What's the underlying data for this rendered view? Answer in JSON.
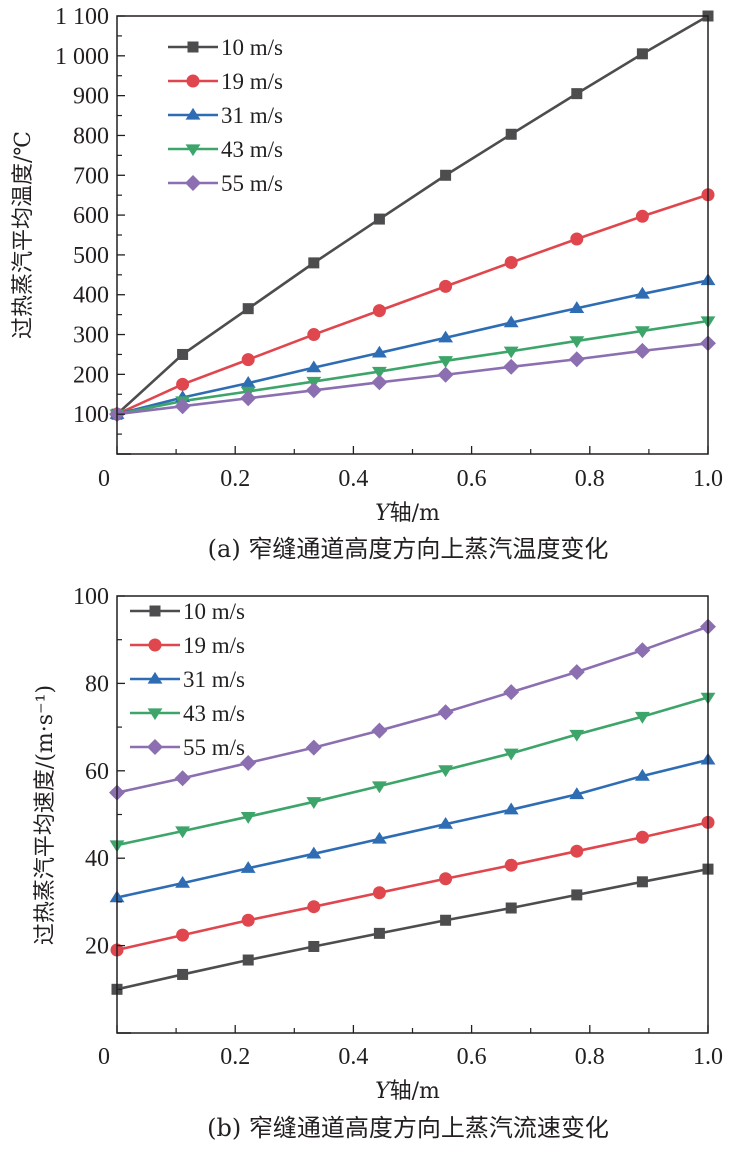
{
  "chart_data": [
    {
      "type": "line",
      "caption": "(a) 窄缝通道高度方向上蒸汽温度变化",
      "xlabel_italic": "Y",
      "xlabel_rest": "轴/m",
      "ylabel": "过热蒸汽平均温度/℃",
      "xlim": [
        0,
        1.0
      ],
      "ylim": [
        0,
        1100
      ],
      "xticks": [
        0,
        0.2,
        0.4,
        0.6,
        0.8,
        1.0
      ],
      "xtick_labels": [
        "0",
        "0.2",
        "0.4",
        "0.6",
        "0.8",
        "1.0"
      ],
      "yticks": [
        100,
        200,
        300,
        400,
        500,
        600,
        700,
        800,
        900,
        1000,
        1100
      ],
      "ytick_labels": [
        "100",
        "200",
        "300",
        "400",
        "500",
        "600",
        "700",
        "800",
        "900",
        "1 000",
        "1 100"
      ],
      "grid": false,
      "legend_position": "top-left",
      "x": [
        0,
        0.111,
        0.222,
        0.333,
        0.444,
        0.556,
        0.667,
        0.778,
        0.889,
        1.0
      ],
      "series": [
        {
          "name": "10 m/s",
          "marker": "square",
          "color": "#4d4d4f",
          "values": [
            100,
            250,
            365,
            480,
            590,
            700,
            803,
            905,
            1005,
            1100
          ]
        },
        {
          "name": "19 m/s",
          "marker": "circle",
          "color": "#e0464d",
          "values": [
            100,
            175,
            237,
            300,
            360,
            421,
            481,
            540,
            597,
            651
          ]
        },
        {
          "name": "31 m/s",
          "marker": "triangle-up",
          "color": "#2e6db4",
          "values": [
            100,
            142,
            178,
            217,
            254,
            292,
            330,
            366,
            402,
            436
          ]
        },
        {
          "name": "43 m/s",
          "marker": "triangle-down",
          "color": "#3da56a",
          "values": [
            100,
            133,
            157,
            182,
            207,
            234,
            258,
            284,
            309,
            334
          ]
        },
        {
          "name": "55 m/s",
          "marker": "diamond",
          "color": "#8b6fb0",
          "values": [
            100,
            120,
            140,
            160,
            180,
            199,
            219,
            238,
            259,
            278
          ]
        }
      ]
    },
    {
      "type": "line",
      "caption": "(b) 窄缝通道高度方向上蒸汽流速变化",
      "xlabel_italic": "Y",
      "xlabel_rest": "轴/m",
      "ylabel": "过热蒸汽平均速度/(m·s⁻¹)",
      "xlim": [
        0,
        1.0
      ],
      "ylim": [
        0,
        100
      ],
      "xticks": [
        0,
        0.2,
        0.4,
        0.6,
        0.8,
        1.0
      ],
      "xtick_labels": [
        "0",
        "0.2",
        "0.4",
        "0.6",
        "0.8",
        "1.0"
      ],
      "yticks": [
        20,
        40,
        60,
        80,
        100
      ],
      "ytick_labels": [
        "20",
        "40",
        "60",
        "80",
        "100"
      ],
      "grid": false,
      "legend_position": "top-left",
      "x": [
        0,
        0.111,
        0.222,
        0.333,
        0.444,
        0.556,
        0.667,
        0.778,
        0.889,
        1.0
      ],
      "series": [
        {
          "name": "10 m/s",
          "marker": "square",
          "color": "#4d4d4f",
          "values": [
            10,
            13.4,
            16.7,
            19.8,
            22.8,
            25.8,
            28.6,
            31.6,
            34.6,
            37.5
          ]
        },
        {
          "name": "19 m/s",
          "marker": "circle",
          "color": "#e0464d",
          "values": [
            19,
            22.4,
            25.8,
            28.9,
            32.1,
            35.3,
            38.4,
            41.6,
            44.8,
            48.2
          ]
        },
        {
          "name": "31 m/s",
          "marker": "triangle-up",
          "color": "#2e6db4",
          "values": [
            31,
            34.3,
            37.7,
            41,
            44.4,
            47.8,
            51.1,
            54.6,
            58.8,
            62.5
          ]
        },
        {
          "name": "43 m/s",
          "marker": "triangle-down",
          "color": "#3da56a",
          "values": [
            43,
            46.2,
            49.5,
            52.9,
            56.5,
            60.2,
            64,
            68.3,
            72.4,
            76.8
          ]
        },
        {
          "name": "55 m/s",
          "marker": "diamond",
          "color": "#8b6fb0",
          "values": [
            55,
            58.3,
            61.8,
            65.3,
            69.2,
            73.4,
            78,
            82.6,
            87.6,
            93
          ]
        }
      ]
    }
  ]
}
